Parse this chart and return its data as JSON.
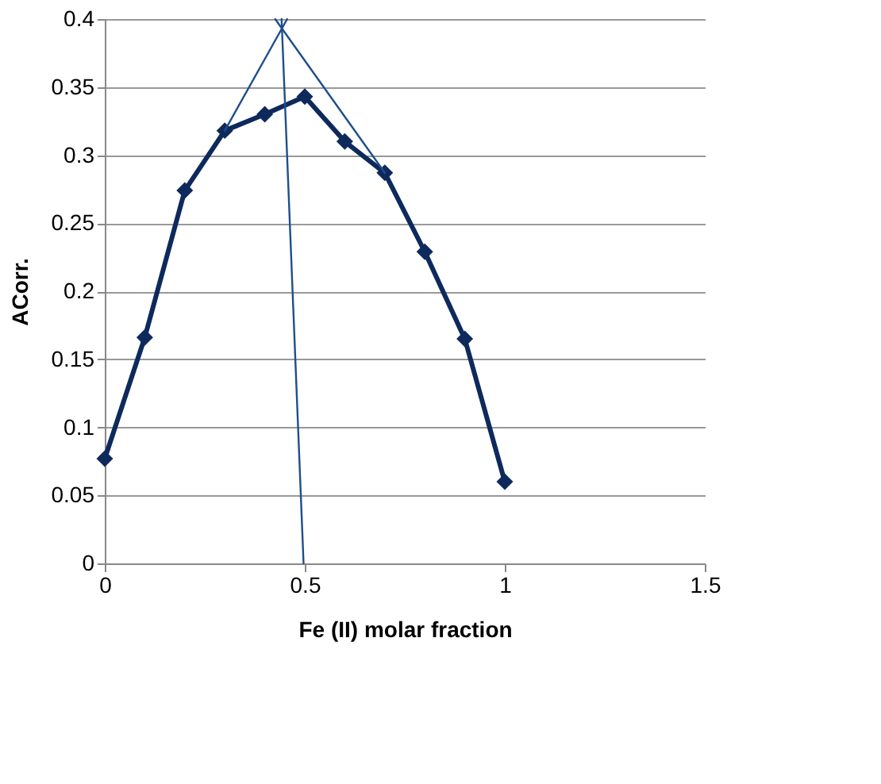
{
  "chart_data": {
    "type": "line",
    "xlabel": "Fe (II) molar fraction",
    "ylabel": "ACorr.",
    "xlim": [
      0,
      1.5
    ],
    "xticks": [
      0,
      0.5,
      1,
      1.5
    ],
    "ylim": [
      0,
      0.4
    ],
    "yticks": [
      0,
      0.05,
      0.1,
      0.15,
      0.2,
      0.25,
      0.3,
      0.35,
      0.4
    ],
    "grid": "y",
    "series": [
      {
        "color": "#0e2a5c",
        "marker": "diamond",
        "x": [
          0,
          0.1,
          0.2,
          0.3,
          0.4,
          0.5,
          0.6,
          0.7,
          0.8,
          0.9,
          1
        ],
        "values": [
          0.077,
          0.166,
          0.274,
          0.318,
          0.33,
          0.343,
          0.31,
          0.287,
          0.229,
          0.165,
          0.06
        ]
      },
      {
        "color": "#1f4e8c",
        "marker": "none",
        "x": [
          0.3,
          0.456
        ],
        "values": [
          0.318,
          0.4
        ]
      },
      {
        "color": "#1f4e8c",
        "marker": "none",
        "x": [
          0.7,
          0.426
        ],
        "values": [
          0.287,
          0.4
        ]
      },
      {
        "color": "#1f4e8c",
        "marker": "none",
        "x": [
          0.497,
          0.442
        ],
        "values": [
          0,
          0.4
        ]
      }
    ]
  }
}
